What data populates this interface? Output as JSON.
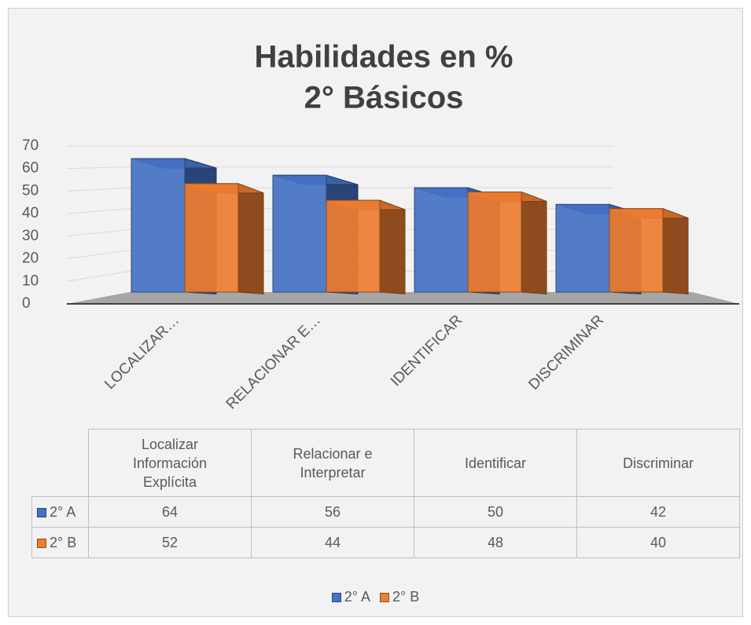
{
  "chart_data": {
    "type": "bar3d",
    "title": "Habilidades en %",
    "subtitle": "2° Básicos",
    "axis_labels": [
      "LOCALIZAR…",
      "RELACIONAR E…",
      "IDENTIFICAR",
      "DISCRIMINAR"
    ],
    "categories": [
      "Localizar Información Explícita",
      "Relacionar e Interpretar",
      "Identificar",
      "Discriminar"
    ],
    "series": [
      {
        "name": "2° A",
        "color": "#4472c4",
        "values": [
          64,
          56,
          50,
          42
        ]
      },
      {
        "name": "2° B",
        "color": "#ed7d31",
        "values": [
          52,
          44,
          48,
          40
        ]
      }
    ],
    "ylim": [
      0,
      70
    ],
    "yticks": [
      0,
      10,
      20,
      30,
      40,
      50,
      60,
      70
    ],
    "grid": true,
    "legend": "bottom"
  }
}
